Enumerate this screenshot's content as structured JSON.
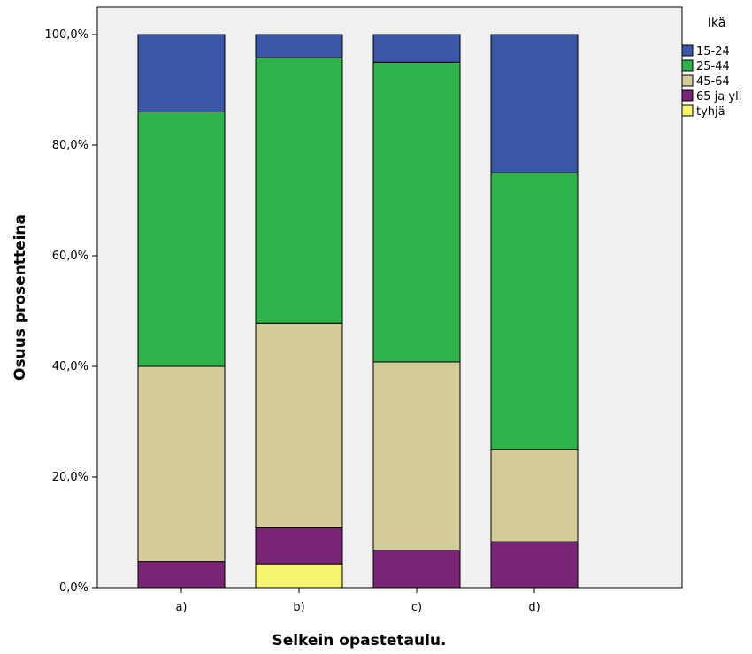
{
  "chart_data": {
    "type": "bar",
    "stacked": true,
    "percent": true,
    "categories": [
      "a)",
      "b)",
      "c)",
      "d)"
    ],
    "series": [
      {
        "name": "tyhjä",
        "color": "#f7f56e",
        "values": [
          0.0,
          4.3,
          0.0,
          0.0
        ]
      },
      {
        "name": "65 ja yli",
        "color": "#7b2374",
        "values": [
          4.7,
          6.5,
          6.8,
          8.3
        ]
      },
      {
        "name": "45-64",
        "color": "#d4cc99",
        "values": [
          35.3,
          37.0,
          34.0,
          16.7
        ]
      },
      {
        "name": "25-44",
        "color": "#2db34a",
        "values": [
          46.0,
          48.0,
          54.2,
          50.0
        ]
      },
      {
        "name": "15-24",
        "color": "#3b58a8",
        "values": [
          14.0,
          4.2,
          5.0,
          25.0
        ]
      }
    ],
    "xlabel": "Selkein opastetaulu.",
    "ylabel": "Osuus prosentteina",
    "ylim": [
      0,
      100
    ],
    "yticks": [
      "0,0%",
      "20,0%",
      "40,0%",
      "60,0%",
      "80,0%",
      "100,0%"
    ],
    "legend_title": "Ikä",
    "legend_order": [
      "15-24",
      "25-44",
      "45-64",
      "65 ja yli",
      "tyhjä"
    ],
    "legend_position": "top-right",
    "plot_background": "#f0f0f0",
    "grid": false
  }
}
